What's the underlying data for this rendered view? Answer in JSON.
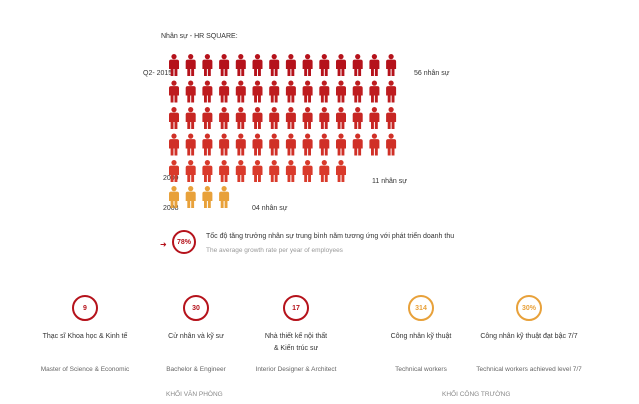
{
  "chart_data": {
    "type": "pictograph",
    "title": "Nhân sự - HR SQUARE:",
    "rows": [
      {
        "label": "Q2- 2015",
        "count": 56,
        "count_label": "56 nhân sự",
        "color": "#b5121b"
      },
      {
        "label": "2009",
        "count": 11,
        "count_label": "11 nhân sự",
        "color": "#b5121b"
      },
      {
        "label": "2008",
        "count": 4,
        "count_label": "04 nhân sự",
        "color": "#e8a13a"
      }
    ],
    "colors": {
      "gradient_top": "#b5121b",
      "gradient_bottom": "#d93a2b",
      "orange": "#e8a13a"
    }
  },
  "growth": {
    "value": "78%",
    "text_vi": "Tốc độ tăng trưởng nhân sự trung bình năm tương ứng với phát triển doanh thu",
    "text_en": "The average growth rate per year of employees"
  },
  "stats": [
    {
      "value": "9",
      "vi_line1": "Thạc sĩ Khoa học & Kinh tế",
      "vi_line2": "",
      "en": "Master of Science & Economic",
      "color": "#b5121b"
    },
    {
      "value": "30",
      "vi_line1": "Cử nhân và kỹ sư",
      "vi_line2": "",
      "en": "Bachelor & Engineer",
      "color": "#b5121b"
    },
    {
      "value": "17",
      "vi_line1": "Nhà thiết kế nội thất",
      "vi_line2": "& Kiến trúc sư",
      "en": "Interior Designer & Architect",
      "color": "#b5121b"
    },
    {
      "value": "314",
      "vi_line1": "Công nhân kỹ thuật",
      "vi_line2": "",
      "en": "Technical workers",
      "color": "#e8a13a"
    },
    {
      "value": "30%",
      "vi_line1": "Công nhân kỹ thuật đạt bậc 7/7",
      "vi_line2": "",
      "en": "Technical workers achieved level 7/7",
      "color": "#e8a13a"
    }
  ],
  "groups": {
    "office": "KHỐI VĂN PHÒNG",
    "site": "KHỐI CÔNG TRƯỜNG"
  }
}
